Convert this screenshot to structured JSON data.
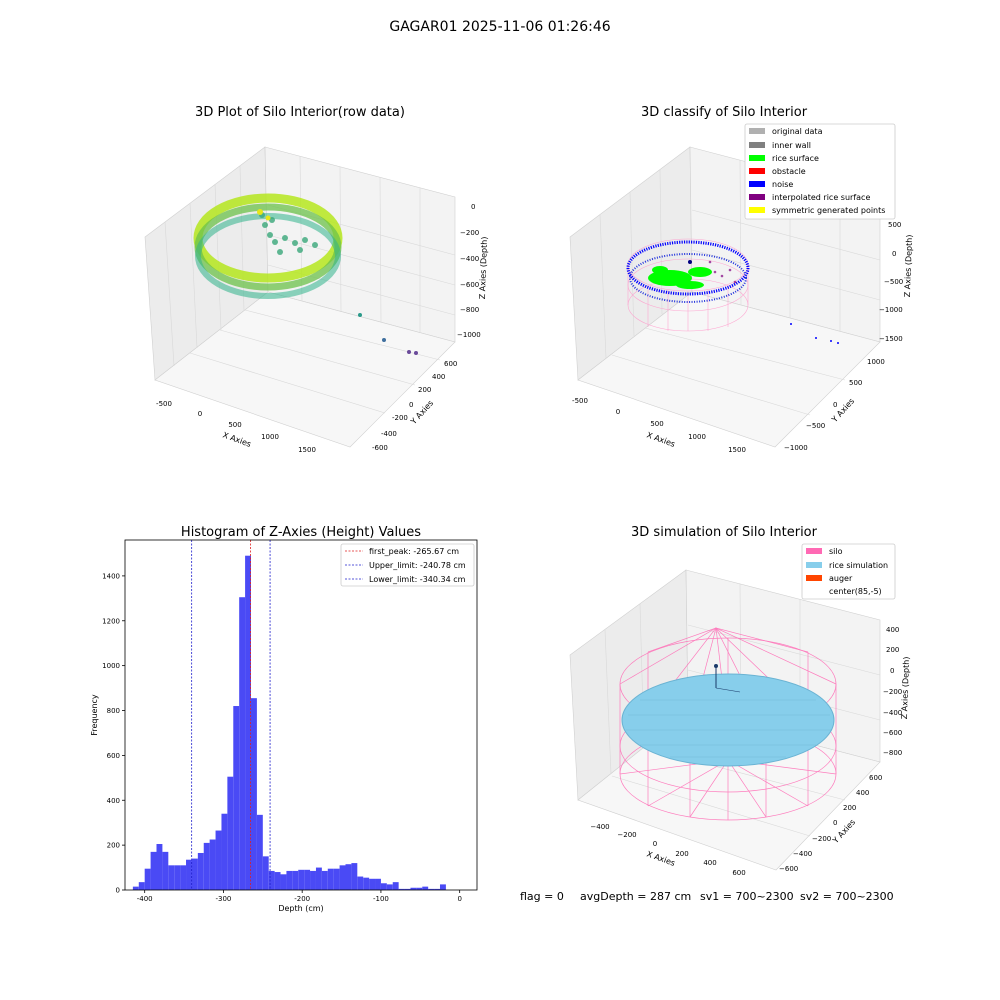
{
  "suptitle": "GAGAR01 2025-11-06 01:26:46",
  "colors": {
    "hist_bar": "#4a4af5",
    "first_peak": "#e02020",
    "limits": "#1f1fcc",
    "silo": "#ff69b4",
    "rice_simulation": "#87ceeb",
    "auger": "#ff4500",
    "original_data": "#b0b0b0",
    "inner_wall": "#808080",
    "rice_surface": "#00ff00",
    "obstacle": "#ff0000",
    "noise": "#0000ff",
    "interpolated_rice_surface": "#800080",
    "symmetric_generated_points": "#ffff00"
  },
  "chart_data": [
    {
      "type": "scatter",
      "title": "3D Plot of Silo Interior(row data)",
      "xlabel": "X Axies",
      "ylabel": "Y Axies",
      "zlabel": "Z Axies (Depth)",
      "x_ticks": [
        "-500",
        "0",
        "500",
        "1000",
        "1500"
      ],
      "y_ticks": [
        "-600",
        "-400",
        "-200",
        "0",
        "200",
        "400",
        "600"
      ],
      "z_ticks": [
        "0",
        "−200",
        "−400",
        "−600",
        "−800",
        "−1000"
      ]
    },
    {
      "type": "scatter",
      "title": "3D classify of Silo Interior",
      "xlabel": "X Axies",
      "ylabel": "Y Axies",
      "zlabel": "Z Axies (Depth)",
      "x_ticks": [
        "-500",
        "0",
        "500",
        "1000",
        "1500"
      ],
      "y_ticks": [
        "−1000",
        "−500",
        "0",
        "500",
        "1000"
      ],
      "z_ticks": [
        "500",
        "0",
        "−500",
        "−1000",
        "−1500"
      ],
      "legend": [
        "original data",
        "inner wall",
        "rice surface",
        "obstacle",
        "noise",
        "interpolated rice surface",
        "symmetric generated points"
      ]
    },
    {
      "type": "bar",
      "title": "Histogram of Z-Axies (Height) Values",
      "xlabel": "Depth (cm)",
      "ylabel": "Frequency",
      "xlim": [
        -425,
        22
      ],
      "ylim": [
        0,
        1560
      ],
      "x_ticks": [
        -400,
        -300,
        -200,
        -100,
        0
      ],
      "y_ticks": [
        0,
        200,
        400,
        600,
        800,
        1000,
        1200,
        1400
      ],
      "bin_start": -415,
      "bin_width": 7.5,
      "values": [
        15,
        35,
        95,
        170,
        205,
        170,
        110,
        110,
        110,
        135,
        140,
        165,
        210,
        225,
        265,
        340,
        505,
        820,
        1305,
        1490,
        855,
        335,
        150,
        85,
        80,
        70,
        85,
        85,
        90,
        90,
        85,
        100,
        85,
        95,
        95,
        110,
        115,
        120,
        60,
        55,
        50,
        50,
        30,
        25,
        35,
        5,
        5,
        10,
        10,
        15,
        5,
        5,
        25
      ],
      "lines": [
        {
          "name": "first_peak: -265.67 cm",
          "x": -265.67
        },
        {
          "name": "Upper_limit: -240.78 cm",
          "x": -240.78
        },
        {
          "name": "Lower_limit: -340.34 cm",
          "x": -340.34
        }
      ]
    },
    {
      "type": "scatter",
      "title": "3D simulation of Silo Interior",
      "xlabel": "X Axies",
      "ylabel": "Y Axies",
      "zlabel": "Z Axies (Depth)",
      "x_ticks": [
        "−400",
        "−200",
        "0",
        "200",
        "400",
        "600"
      ],
      "y_ticks": [
        "−600",
        "−400",
        "−200",
        "0",
        "200",
        "400",
        "600"
      ],
      "z_ticks": [
        "400",
        "200",
        "0",
        "−200",
        "−400",
        "−600",
        "−800"
      ],
      "legend": [
        "silo",
        "rice simulation",
        "auger",
        "center(85,-5)"
      ]
    }
  ],
  "footer": {
    "flag": "flag = 0",
    "avg": "avgDepth = 287 cm",
    "sv1": "sv1 = 700~2300",
    "sv2": "sv2 = 700~2300"
  }
}
